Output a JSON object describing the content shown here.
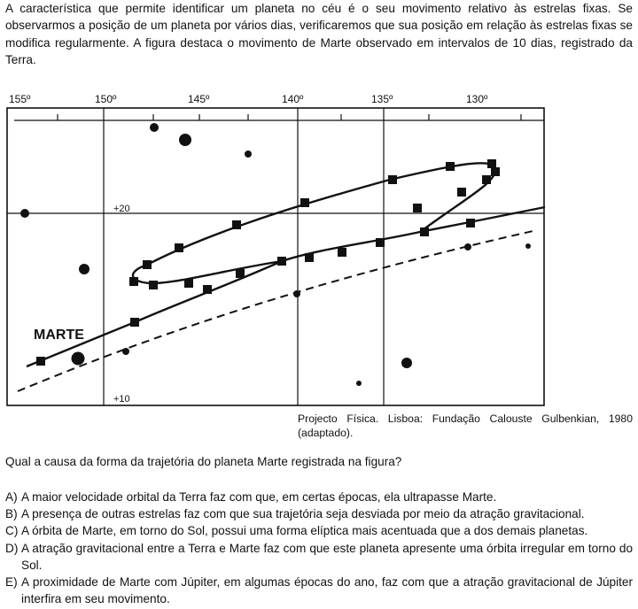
{
  "intro": "A característica que permite identificar um planeta no céu é o seu movimento relativo às estrelas fixas. Se observarmos a posição de um planeta por vários dias, verificaremos que sua posição em relação às estrelas fixas se modifica regularmente. A figura destaca o movimento de Marte observado em intervalos de 10 dias, registrado da Terra.",
  "figure": {
    "longitude_labels": [
      "155º",
      "150º",
      "145º",
      "140º",
      "135º",
      "130º"
    ],
    "latitude_labels": [
      "+20",
      "+10"
    ],
    "planet_label": "MARTE"
  },
  "source": "Projecto Física. Lisboa: Fundação Calouste Gulbenkian, 1980 (adaptado).",
  "question": "Qual a causa da forma da trajetória do planeta Marte registrada na figura?",
  "options": [
    {
      "letter": "A)",
      "text": "A maior velocidade orbital da Terra faz com que, em certas épocas, ela ultrapasse Marte."
    },
    {
      "letter": "B)",
      "text": "A presença de outras estrelas faz com que sua trajetória seja desviada por meio da atração gravitacional."
    },
    {
      "letter": "C)",
      "text": "A órbita de Marte, em torno do Sol, possui uma forma elíptica mais acentuada que a dos demais planetas."
    },
    {
      "letter": "D)",
      "text": "A atração gravitacional entre a Terra e Marte faz com que este planeta apresente uma órbita irregular em torno do Sol."
    },
    {
      "letter": "E)",
      "text": "A proximidade de Marte com Júpiter, em algumas épocas do ano, faz com que a atração gravitacional de Júpiter interfira em seu movimento."
    }
  ]
}
